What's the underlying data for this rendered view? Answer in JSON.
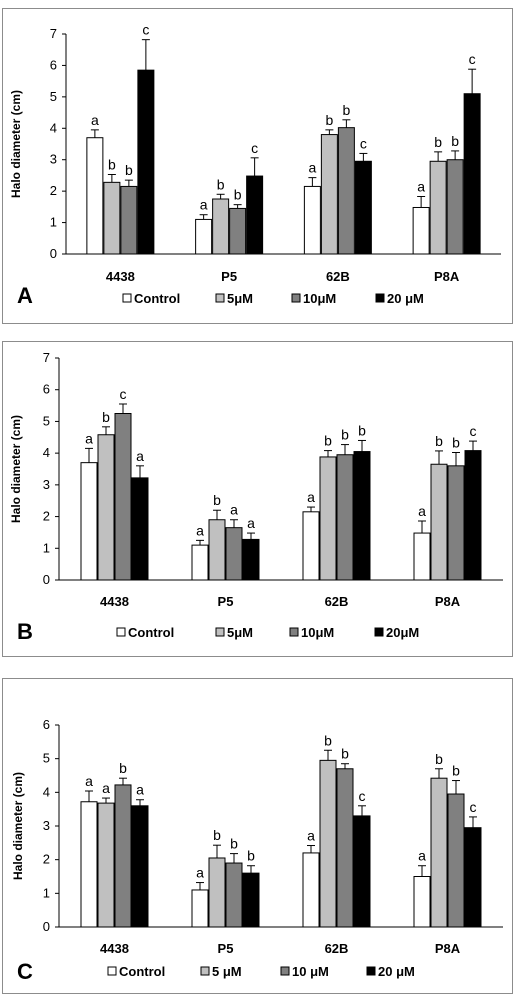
{
  "colors": {
    "Control": "#ffffff",
    "5uM": "#c0c0c0",
    "10uM": "#808080",
    "20uM": "#000000"
  },
  "chart_data": [
    {
      "type": "bar",
      "panel_label": "A",
      "ylabel": "Halo diameter (cm)",
      "ylim": [
        0,
        7
      ],
      "yticks": [
        0,
        1,
        2,
        3,
        4,
        5,
        6,
        7
      ],
      "categories": [
        "4438",
        "P5",
        "62B",
        "P8A"
      ],
      "legend_position": "bottom",
      "series": [
        {
          "name": "Control",
          "color": "#ffffff",
          "values": [
            3.7,
            1.1,
            2.15,
            1.48
          ],
          "errors": [
            0.25,
            0.15,
            0.28,
            0.35
          ],
          "letters": [
            "a",
            "a",
            "a",
            "a"
          ]
        },
        {
          "name": "5μM",
          "color": "#c0c0c0",
          "values": [
            2.28,
            1.75,
            3.8,
            2.95
          ],
          "errors": [
            0.25,
            0.15,
            0.15,
            0.3
          ],
          "letters": [
            "b",
            "b",
            "b",
            "b"
          ]
        },
        {
          "name": "10μM",
          "color": "#808080",
          "values": [
            2.15,
            1.45,
            4.02,
            3.0
          ],
          "errors": [
            0.2,
            0.12,
            0.25,
            0.28
          ],
          "letters": [
            "b",
            "b",
            "b",
            "b"
          ]
        },
        {
          "name": "20 μM",
          "color": "#000000",
          "values": [
            5.85,
            2.48,
            2.95,
            5.1
          ],
          "errors": [
            0.97,
            0.58,
            0.25,
            0.78
          ],
          "letters": [
            "c",
            "c",
            "c",
            "c"
          ]
        }
      ]
    },
    {
      "type": "bar",
      "panel_label": "B",
      "ylabel": "Halo diameter (cm)",
      "ylim": [
        0,
        7
      ],
      "yticks": [
        0,
        1,
        2,
        3,
        4,
        5,
        6,
        7
      ],
      "categories": [
        "4438",
        "P5",
        "62B",
        "P8A"
      ],
      "legend_position": "bottom",
      "series": [
        {
          "name": "Control",
          "color": "#ffffff",
          "values": [
            3.7,
            1.1,
            2.15,
            1.48
          ],
          "errors": [
            0.45,
            0.15,
            0.15,
            0.38
          ],
          "letters": [
            "a",
            "a",
            "a",
            "a"
          ]
        },
        {
          "name": "5μM",
          "color": "#c0c0c0",
          "values": [
            4.58,
            1.9,
            3.88,
            3.65
          ],
          "errors": [
            0.25,
            0.3,
            0.2,
            0.42
          ],
          "letters": [
            "b",
            "b",
            "b",
            "b"
          ]
        },
        {
          "name": "10μM",
          "color": "#808080",
          "values": [
            5.25,
            1.65,
            3.95,
            3.6
          ],
          "errors": [
            0.3,
            0.25,
            0.32,
            0.42
          ],
          "letters": [
            "c",
            "a",
            "b",
            "b"
          ]
        },
        {
          "name": "20μM",
          "color": "#000000",
          "values": [
            3.22,
            1.28,
            4.05,
            4.08
          ],
          "errors": [
            0.38,
            0.2,
            0.35,
            0.3
          ],
          "letters": [
            "a",
            "a",
            "b",
            "c"
          ]
        }
      ]
    },
    {
      "type": "bar",
      "panel_label": "C",
      "ylabel": "Halo diameter (cm)",
      "ylim": [
        0,
        6
      ],
      "yticks": [
        0,
        1,
        2,
        3,
        4,
        5,
        6
      ],
      "categories": [
        "4438",
        "P5",
        "62B",
        "P8A"
      ],
      "legend_position": "bottom",
      "series": [
        {
          "name": "Control",
          "color": "#ffffff",
          "values": [
            3.72,
            1.1,
            2.2,
            1.5
          ],
          "errors": [
            0.32,
            0.22,
            0.22,
            0.32
          ],
          "letters": [
            "a",
            "a",
            "a",
            "a"
          ]
        },
        {
          "name": "5 μM",
          "color": "#c0c0c0",
          "values": [
            3.68,
            2.05,
            4.95,
            4.42
          ],
          "errors": [
            0.15,
            0.38,
            0.3,
            0.28
          ],
          "letters": [
            "a",
            "b",
            "b",
            "b"
          ]
        },
        {
          "name": "10  μM",
          "color": "#808080",
          "values": [
            4.22,
            1.9,
            4.7,
            3.95
          ],
          "errors": [
            0.2,
            0.28,
            0.15,
            0.4
          ],
          "letters": [
            "b",
            "b",
            "b",
            "b"
          ]
        },
        {
          "name": "20 μM",
          "color": "#000000",
          "values": [
            3.6,
            1.6,
            3.3,
            2.95
          ],
          "errors": [
            0.18,
            0.22,
            0.3,
            0.32
          ],
          "letters": [
            "a",
            "b",
            "c",
            "c"
          ]
        }
      ]
    }
  ]
}
